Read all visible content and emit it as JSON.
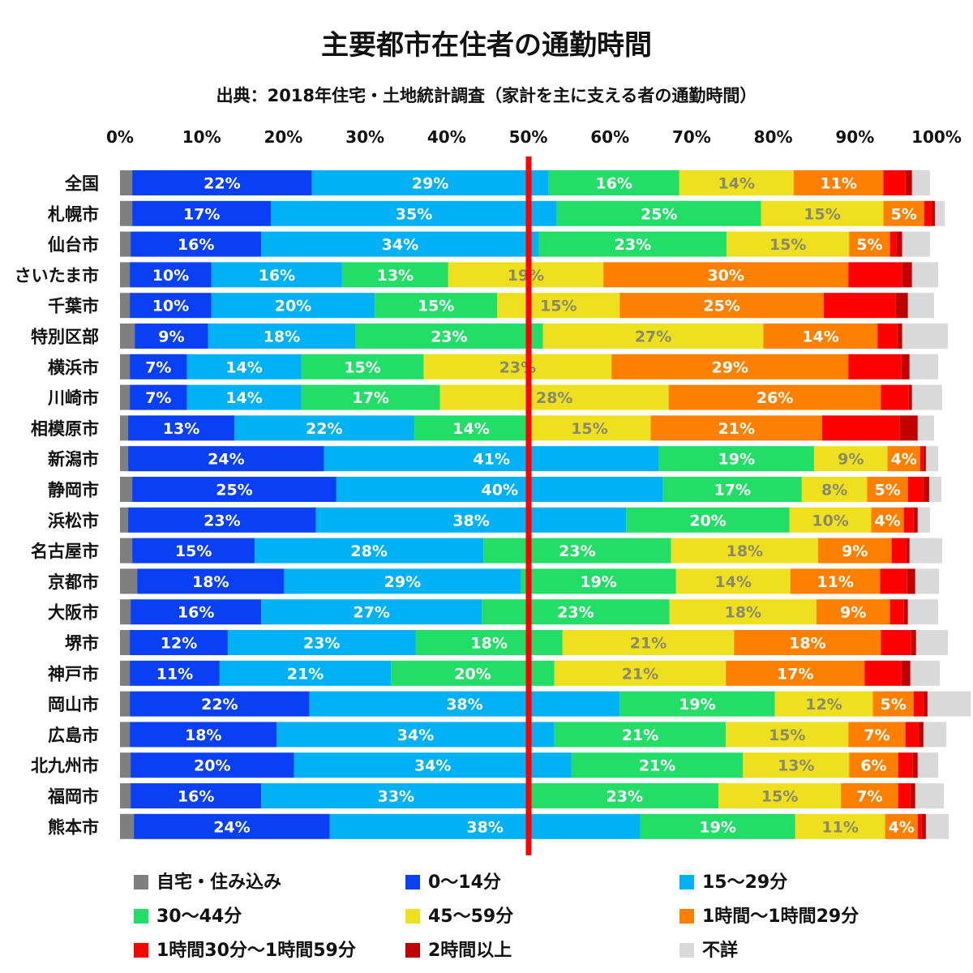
{
  "chart_data": {
    "type": "bar",
    "orientation": "horizontal",
    "stacked": true,
    "title": "主要都市在住者の通勤時間",
    "subtitle": "出典：2018年住宅・土地統計調査（家計を主に支える者の通勤時間）",
    "x_ticks": [
      "0%",
      "10%",
      "20%",
      "30%",
      "40%",
      "50%",
      "60%",
      "70%",
      "80%",
      "90%",
      "100%"
    ],
    "xlim": [
      0,
      100
    ],
    "reference_line": 50,
    "legend_position": "bottom",
    "categories": [
      "全国",
      "札幌市",
      "仙台市",
      "さいたま市",
      "千葉市",
      "特別区部",
      "横浜市",
      "川崎市",
      "相模原市",
      "新潟市",
      "静岡市",
      "浜松市",
      "名古屋市",
      "京都市",
      "大阪市",
      "堺市",
      "神戸市",
      "岡山市",
      "広島市",
      "北九州市",
      "福岡市",
      "熊本市"
    ],
    "series": [
      {
        "name": "自宅・住み込み",
        "color": "#7f7f7f",
        "values": [
          1.5,
          1.5,
          1.3,
          1.2,
          1.2,
          1.8,
          1.2,
          1.2,
          1.0,
          1.0,
          1.5,
          1.0,
          1.5,
          2.1,
          1.3,
          1.2,
          1.2,
          1.2,
          1.2,
          1.3,
          1.3,
          1.7
        ]
      },
      {
        "name": "0〜14分",
        "color": "#0a40f5",
        "values": [
          22,
          17,
          16,
          10,
          10,
          9,
          7,
          7,
          13,
          24,
          25,
          23,
          15,
          18,
          16,
          12,
          11,
          22,
          18,
          20,
          16,
          24
        ]
      },
      {
        "name": "15〜29分",
        "color": "#00b1f5",
        "values": [
          29,
          35,
          34,
          16,
          20,
          18,
          14,
          14,
          22,
          41,
          40,
          38,
          28,
          29,
          27,
          23,
          21,
          38,
          34,
          34,
          33,
          38
        ]
      },
      {
        "name": "30〜44分",
        "color": "#22dd66",
        "values": [
          16,
          25,
          23,
          13,
          15,
          23,
          15,
          17,
          14,
          19,
          17,
          20,
          23,
          19,
          23,
          18,
          20,
          19,
          21,
          21,
          23,
          19
        ]
      },
      {
        "name": "45〜59分",
        "color": "#eee01e",
        "values": [
          14,
          15,
          15,
          19,
          15,
          27,
          23,
          28,
          15,
          9,
          8,
          10,
          18,
          14,
          18,
          21,
          21,
          12,
          15,
          13,
          15,
          11
        ]
      },
      {
        "name": "1時間〜1時間29分",
        "color": "#ff8000",
        "values": [
          11,
          5,
          5,
          30,
          25,
          14,
          29,
          26,
          21,
          4,
          5,
          4,
          9,
          11,
          9,
          18,
          17,
          5,
          7,
          6,
          7,
          4
        ]
      },
      {
        "name": "1時間30分〜1時間59分",
        "color": "#ff0000",
        "values": [
          2.7,
          0.9,
          0.8,
          6.6,
          8.8,
          2.4,
          6.5,
          3.4,
          9.5,
          0.4,
          1.9,
          1.2,
          1.8,
          3.3,
          1.7,
          3.7,
          4.5,
          1.2,
          1.6,
          1.8,
          1.5,
          0.5
        ]
      },
      {
        "name": "2時間以上",
        "color": "#c00000",
        "values": [
          0.8,
          0.4,
          0.7,
          1.2,
          1.5,
          0.6,
          1.0,
          0.4,
          2.2,
          0.3,
          0.7,
          0.5,
          0.4,
          1.0,
          0.5,
          0.6,
          1.1,
          0.5,
          0.6,
          0.6,
          0.6,
          0.5
        ]
      },
      {
        "name": "不詳",
        "color": "#d9d9d9",
        "values": [
          2.2,
          1.2,
          3.4,
          3.2,
          3.2,
          5.6,
          3.5,
          3.7,
          2.0,
          1.5,
          1.5,
          1.5,
          4.0,
          2.9,
          3.7,
          3.9,
          3.6,
          5.3,
          2.8,
          2.5,
          3.5,
          2.8
        ]
      }
    ],
    "labeled_series": [
      "0〜14分",
      "15〜29分",
      "30〜44分",
      "45〜59分",
      "1時間〜1時間29分"
    ]
  }
}
